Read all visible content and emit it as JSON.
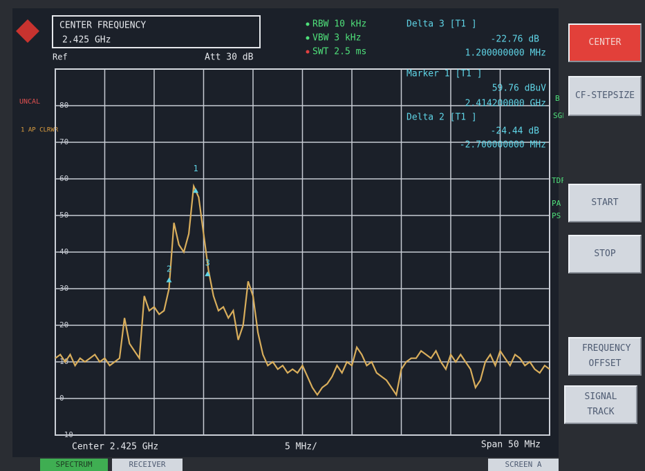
{
  "header": {
    "freq_box": {
      "title": "CENTER FREQUENCY",
      "value": "2.425 GHz"
    },
    "ref": "Ref",
    "att": "Att 30 dB",
    "rbw": "RBW 10 kHz",
    "vbw": "VBW 3 kHz",
    "swt": "SWT 2.5 ms",
    "delta3": {
      "label": "Delta 3 [T1 ]",
      "level": "-22.76 dB",
      "freq": "1.200000000 MHz"
    }
  },
  "marker_info": {
    "marker1": {
      "label": "Marker 1 [T1 ]",
      "level": "59.76 dBuV",
      "freq": "2.414200000 GHz"
    },
    "delta2": {
      "label": "Delta 2 [T1 ]",
      "level": "-24.44 dB",
      "freq": "-2.700000000 MHz"
    }
  },
  "side_labels": {
    "uncal": "UNCAL",
    "trace_mode": "1 AP CLRWR",
    "b": "B",
    "sgl": "SGL",
    "tdf": "TDF",
    "pa": "PA",
    "ps": "PS"
  },
  "trace": {
    "color": "#d9ae5c",
    "xlim": [
      2400,
      2450
    ],
    "ylim": [
      -10,
      90
    ],
    "yticks": [
      80,
      70,
      60,
      50,
      40,
      30,
      20,
      10,
      0,
      -10
    ],
    "xticks": [
      2400,
      2405,
      2410,
      2415,
      2420,
      2425,
      2430,
      2435,
      2440,
      2445,
      2450
    ],
    "x": [
      2400,
      2400.5,
      2401,
      2401.5,
      2402,
      2402.5,
      2403,
      2403.5,
      2404,
      2404.5,
      2405,
      2405.5,
      2406,
      2406.5,
      2407,
      2407.5,
      2408,
      2408.5,
      2409,
      2409.5,
      2410,
      2410.5,
      2411,
      2411.5,
      2412,
      2412.5,
      2413,
      2413.5,
      2414,
      2414.5,
      2415,
      2415.5,
      2416,
      2416.5,
      2417,
      2417.5,
      2418,
      2418.5,
      2419,
      2419.5,
      2420,
      2420.5,
      2421,
      2421.5,
      2422,
      2422.5,
      2423,
      2423.5,
      2424,
      2424.5,
      2425,
      2425.5,
      2426,
      2426.5,
      2427,
      2427.5,
      2428,
      2428.5,
      2429,
      2429.5,
      2430,
      2430.5,
      2431,
      2431.5,
      2432,
      2432.5,
      2433,
      2433.5,
      2434,
      2434.5,
      2435,
      2435.5,
      2436,
      2436.5,
      2437,
      2437.5,
      2438,
      2438.5,
      2439,
      2439.5,
      2440,
      2440.5,
      2441,
      2441.5,
      2442,
      2442.5,
      2443,
      2443.5,
      2444,
      2444.5,
      2445,
      2445.5,
      2446,
      2446.5,
      2447,
      2447.5,
      2448,
      2448.5,
      2449,
      2449.5,
      2450
    ],
    "values": [
      11,
      12,
      10,
      12,
      9,
      11,
      10,
      11,
      12,
      10,
      11,
      9,
      10,
      11,
      22,
      15,
      13,
      11,
      28,
      24,
      25,
      23,
      24,
      30,
      48,
      42,
      40,
      45,
      58,
      55,
      45,
      35,
      28,
      24,
      25,
      22,
      24,
      16,
      20,
      32,
      28,
      18,
      12,
      9,
      10,
      8,
      9,
      7,
      8,
      7,
      9,
      6,
      3,
      1,
      3,
      4,
      6,
      9,
      7,
      10,
      9,
      14,
      12,
      9,
      10,
      7,
      6,
      5,
      3,
      1,
      8,
      10,
      11,
      11,
      13,
      12,
      11,
      13,
      10,
      8,
      12,
      10,
      12,
      10,
      8,
      3,
      5,
      10,
      12,
      9,
      13,
      11,
      9,
      12,
      11,
      9,
      10,
      8,
      7,
      9,
      8
    ],
    "markers": [
      {
        "label": "1",
        "x": 2414.2,
        "value": 59.76
      },
      {
        "label": "2",
        "x": 2411.5,
        "value": 35.32
      },
      {
        "label": "3",
        "x": 2415.4,
        "value": 37
      }
    ]
  },
  "footer": {
    "center": "Center 2.425 GHz",
    "div": "5 MHz/",
    "span": "Span 50 MHz"
  },
  "softkeys": [
    "CENTER",
    "CF-STEPSIZE",
    "START",
    "STOP",
    "FREQUENCY OFFSET",
    "SIGNAL TRACK"
  ],
  "tabs": [
    "SPECTRUM",
    "RECEIVER",
    "SCREEN A"
  ]
}
